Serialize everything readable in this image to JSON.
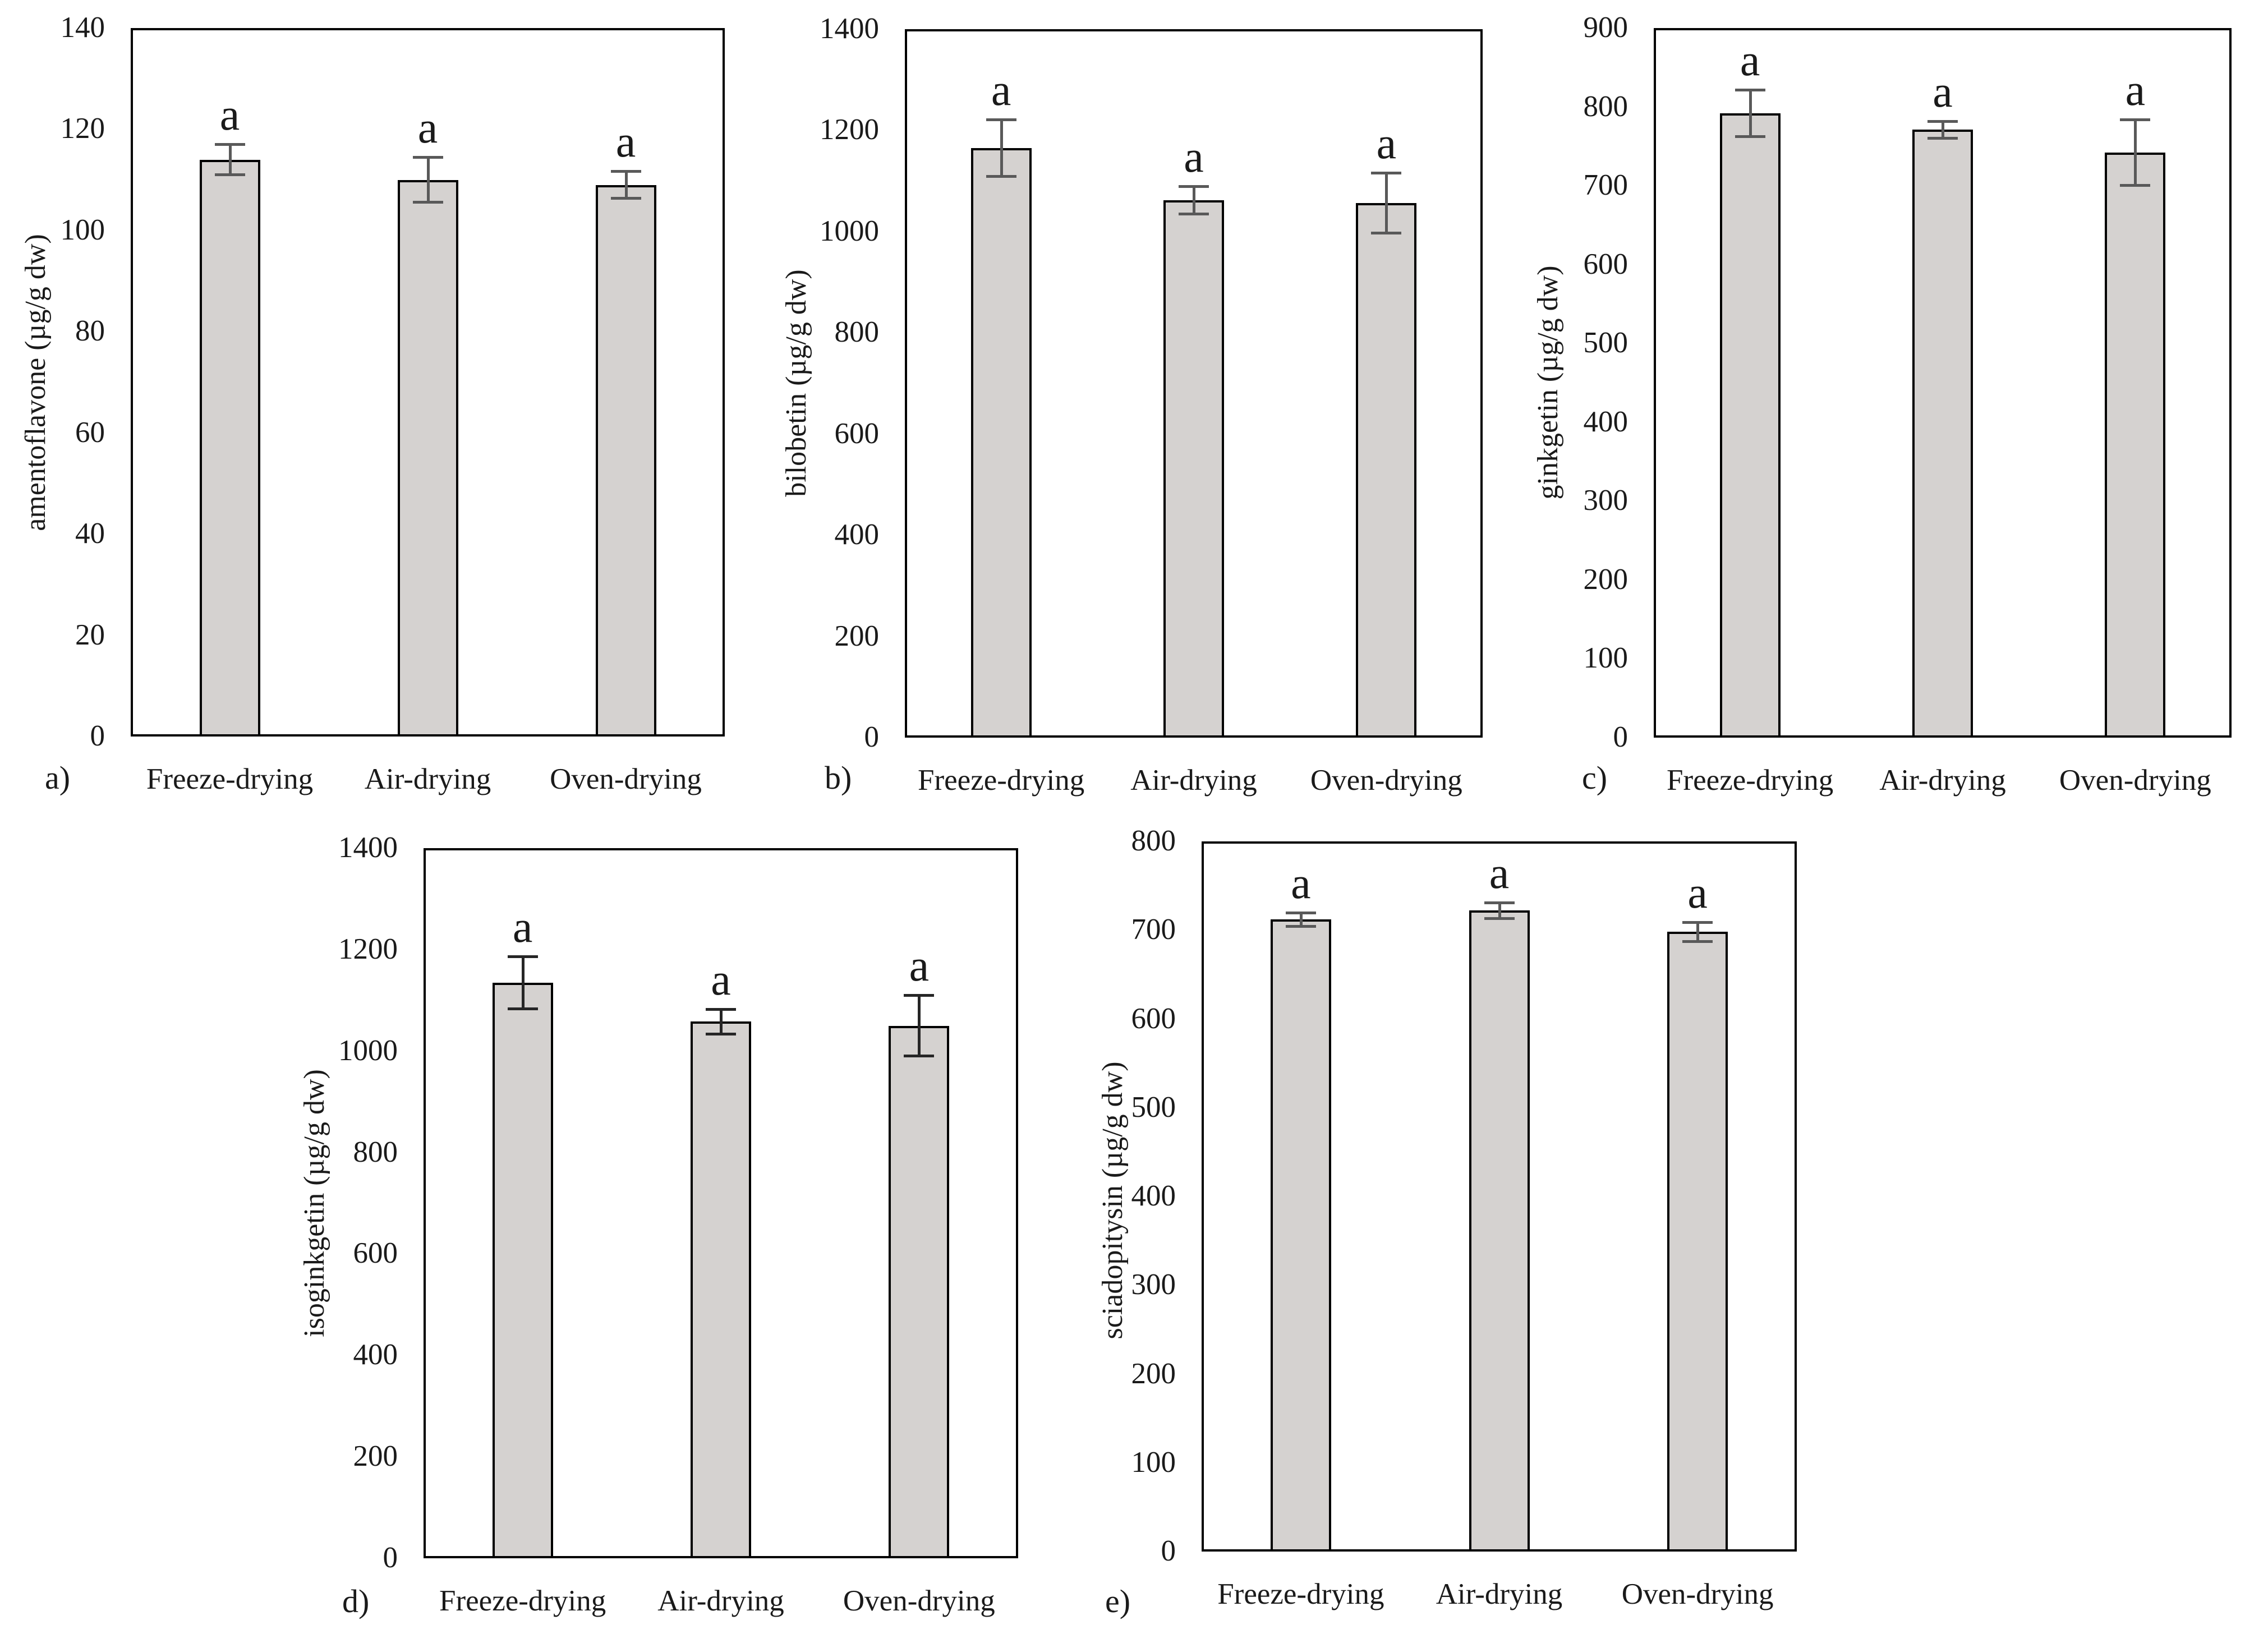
{
  "figure_description": "Five bar charts (a-e) of biflavone contents in ginkgo samples after three drying methods, each bar marked with significance letter a and error bars",
  "categories": [
    "Freeze-drying",
    "Air-drying",
    "Oven-drying"
  ],
  "colors": {
    "bar_fill": "#d5d2d0",
    "bar_border": "#000000",
    "plot_border": "#000000",
    "error_bar_default": "#595959",
    "text": "#1a1a1a",
    "background": "#ffffff"
  },
  "chart_data": [
    {
      "type": "bar",
      "panel_label": "a)",
      "title": "",
      "xlabel": "",
      "ylabel": "amentoflavone (µg/g dw)",
      "categories": [
        "Freeze-drying",
        "Air-drying",
        "Oven-drying"
      ],
      "values": [
        114,
        110,
        109
      ],
      "errors": [
        3,
        4.5,
        2.7
      ],
      "bar_labels": [
        "a",
        "a",
        "a"
      ],
      "ylim": [
        0,
        140
      ],
      "ytick_step": 20,
      "grid": false,
      "legend": false,
      "error_color": "#595959"
    },
    {
      "type": "bar",
      "panel_label": "b)",
      "title": "",
      "xlabel": "",
      "ylabel": "bilobetin (µg/g dw)",
      "categories": [
        "Freeze-drying",
        "Air-drying",
        "Oven-drying"
      ],
      "values": [
        1165,
        1062,
        1056
      ],
      "errors": [
        57,
        28,
        60
      ],
      "bar_labels": [
        "a",
        "a",
        "a"
      ],
      "ylim": [
        0,
        1400
      ],
      "ytick_step": 200,
      "grid": false,
      "legend": false,
      "error_color": "#595959"
    },
    {
      "type": "bar",
      "panel_label": "c)",
      "title": "",
      "xlabel": "",
      "ylabel": "ginkgetin (µg/g dw)",
      "categories": [
        "Freeze-drying",
        "Air-drying",
        "Oven-drying"
      ],
      "values": [
        792,
        771,
        742
      ],
      "errors": [
        30,
        11,
        42
      ],
      "bar_labels": [
        "a",
        "a",
        "a"
      ],
      "ylim": [
        0,
        900
      ],
      "ytick_step": 100,
      "grid": false,
      "legend": false,
      "error_color": "#595959"
    },
    {
      "type": "bar",
      "panel_label": "d)",
      "title": "",
      "xlabel": "",
      "ylabel": "isoginkgetin (µg/g dw)",
      "categories": [
        "Freeze-drying",
        "Air-drying",
        "Oven-drying"
      ],
      "values": [
        1135,
        1058,
        1050
      ],
      "errors": [
        52,
        25,
        60
      ],
      "bar_labels": [
        "a",
        "a",
        "a"
      ],
      "ylim": [
        0,
        1400
      ],
      "ytick_step": 200,
      "grid": false,
      "legend": false,
      "error_color": "#262626"
    },
    {
      "type": "bar",
      "panel_label": "e)",
      "title": "",
      "xlabel": "",
      "ylabel": "sciadopitysin (µg/g dw)",
      "categories": [
        "Freeze-drying",
        "Air-drying",
        "Oven-drying"
      ],
      "values": [
        712,
        722,
        698
      ],
      "errors": [
        8,
        9,
        11
      ],
      "bar_labels": [
        "a",
        "a",
        "a"
      ],
      "ylim": [
        0,
        800
      ],
      "ytick_step": 100,
      "grid": false,
      "legend": false,
      "error_color": "#595959"
    }
  ]
}
